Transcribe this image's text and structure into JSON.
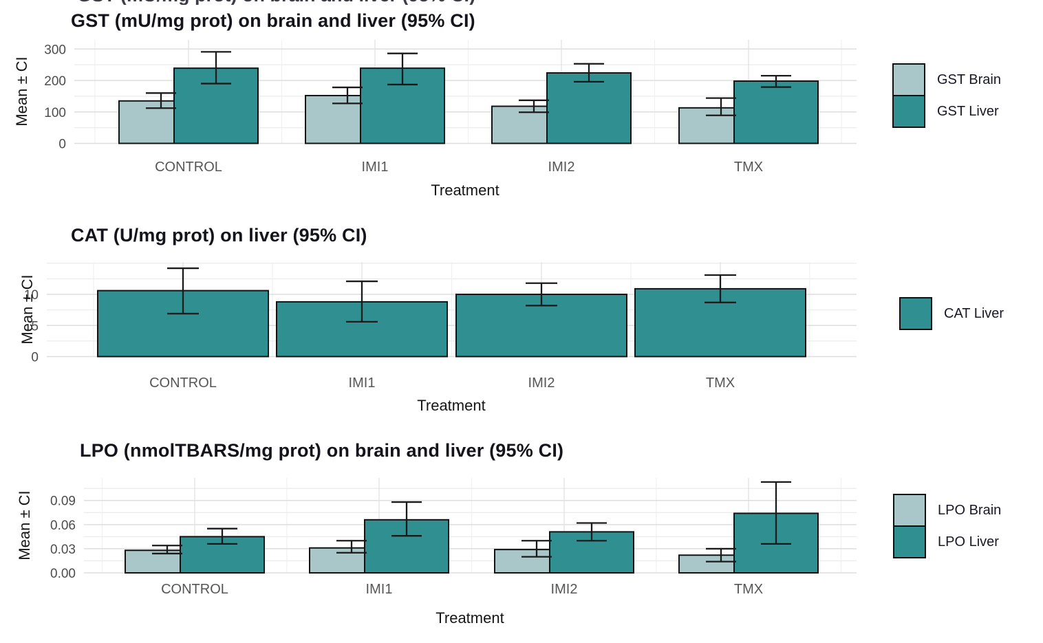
{
  "page_background": "#ffffff",
  "chart_data": [
    {
      "type": "bar",
      "title": "GST (mU/mg prot) on brain and liver (95% CI)",
      "ylabel": "Mean ± CI",
      "xlabel": "Treatment",
      "categories": [
        "CONTROL",
        "IMI1",
        "IMI2",
        "TMX"
      ],
      "y_ticks": [
        0,
        100,
        200,
        300
      ],
      "y_tick_labels": [
        "0",
        "100",
        "200",
        "300"
      ],
      "ylim": [
        0,
        329
      ],
      "grid": true,
      "legend_position": "right",
      "error_bars": "95% CI",
      "series": [
        {
          "name": "GST Brain",
          "color": "#a9c6c8",
          "values": [
            135,
            152,
            118,
            113
          ],
          "ci_low": [
            112,
            127,
            99,
            89
          ],
          "ci_high": [
            160,
            178,
            137,
            144
          ]
        },
        {
          "name": "GST Liver",
          "color": "#308f91",
          "values": [
            239,
            239,
            224,
            198
          ],
          "ci_low": [
            190,
            187,
            196,
            179
          ],
          "ci_high": [
            291,
            286,
            253,
            215
          ]
        }
      ]
    },
    {
      "type": "bar",
      "title": "CAT (U/mg prot) on liver (95% CI)",
      "ylabel": "Mean ± CI",
      "xlabel": "Treatment",
      "categories": [
        "CONTROL",
        "IMI1",
        "IMI2",
        "TMX"
      ],
      "y_ticks": [
        0,
        5,
        10
      ],
      "y_tick_labels": [
        "0",
        "5",
        "10"
      ],
      "ylim": [
        0,
        15.2
      ],
      "grid": true,
      "legend_position": "right",
      "error_bars": "95% CI",
      "series": [
        {
          "name": "CAT Liver",
          "color": "#308f91",
          "values": [
            10.6,
            8.8,
            10.0,
            10.9
          ],
          "ci_low": [
            6.9,
            5.6,
            8.2,
            8.7
          ],
          "ci_high": [
            14.2,
            12.1,
            11.8,
            13.1
          ]
        }
      ]
    },
    {
      "type": "bar",
      "title": "LPO (nmolTBARS/mg prot) on brain and liver (95% CI)",
      "ylabel": "Mean ± CI",
      "xlabel": "Treatment",
      "categories": [
        "CONTROL",
        "IMI1",
        "IMI2",
        "TMX"
      ],
      "y_ticks": [
        0,
        0.03,
        0.06,
        0.09
      ],
      "y_tick_labels": [
        "0.00",
        "0.03",
        "0.06",
        "0.09"
      ],
      "ylim": [
        0,
        0.118
      ],
      "grid": true,
      "legend_position": "right",
      "error_bars": "95% CI",
      "series": [
        {
          "name": "LPO Brain",
          "color": "#a9c6c8",
          "values": [
            0.028,
            0.031,
            0.029,
            0.022
          ],
          "ci_low": [
            0.024,
            0.025,
            0.02,
            0.014
          ],
          "ci_high": [
            0.034,
            0.04,
            0.04,
            0.03
          ]
        },
        {
          "name": "LPO Liver",
          "color": "#308f91",
          "values": [
            0.045,
            0.066,
            0.051,
            0.074
          ],
          "ci_low": [
            0.036,
            0.046,
            0.04,
            0.036
          ],
          "ci_high": [
            0.055,
            0.088,
            0.062,
            0.113
          ]
        }
      ]
    }
  ]
}
